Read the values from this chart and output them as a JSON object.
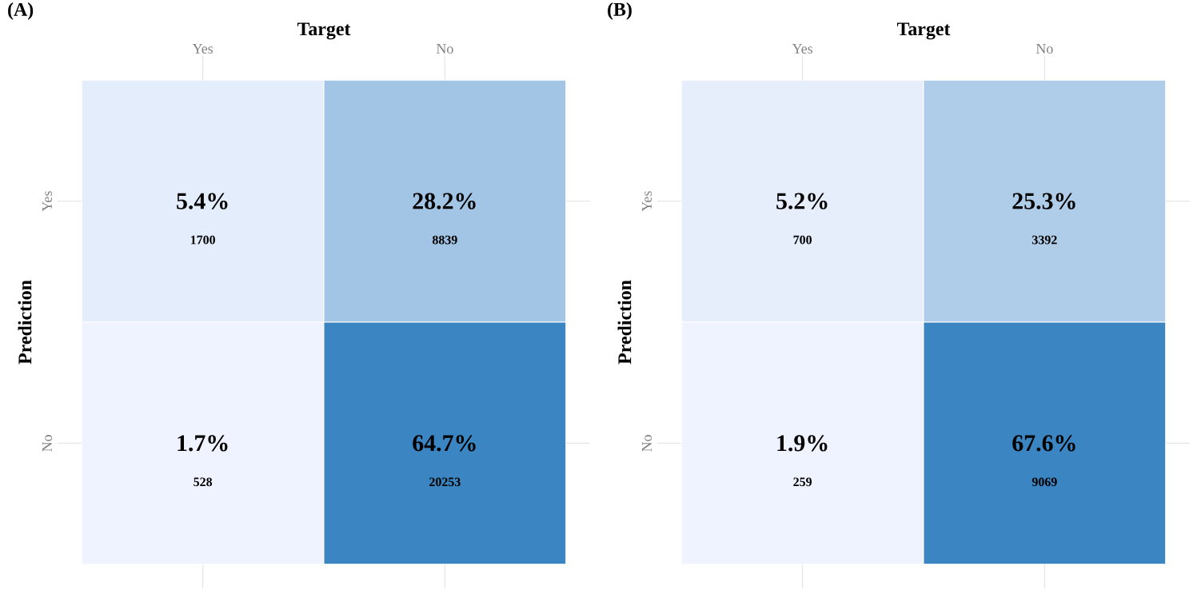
{
  "chart_data": [
    {
      "type": "heatmap",
      "title": "(A)",
      "xlabel": "Target",
      "ylabel": "Prediction",
      "categories": [
        "Yes",
        "No"
      ],
      "y_categories": [
        "Yes",
        "No"
      ],
      "cells": [
        [
          5.4,
          28.2
        ],
        [
          1.7,
          64.7
        ]
      ],
      "cell_labels": [
        [
          "5.4%",
          "28.2%"
        ],
        [
          "1.7%",
          "64.7%"
        ]
      ],
      "annotations": [
        "1700",
        "8839",
        "528",
        "20253"
      ],
      "grid": true
    },
    {
      "type": "heatmap",
      "title": "(B)",
      "xlabel": "Target",
      "ylabel": "Prediction",
      "categories": [
        "Yes",
        "No"
      ],
      "y_categories": [
        "Yes",
        "No"
      ],
      "cells": [
        [
          5.2,
          25.3
        ],
        [
          1.9,
          67.6
        ]
      ],
      "cell_labels": [
        [
          "5.2%",
          "25.3%"
        ],
        [
          "1.9%",
          "67.6%"
        ]
      ],
      "annotations": [
        "700",
        "3392",
        "259",
        "9069"
      ],
      "grid": true
    }
  ]
}
